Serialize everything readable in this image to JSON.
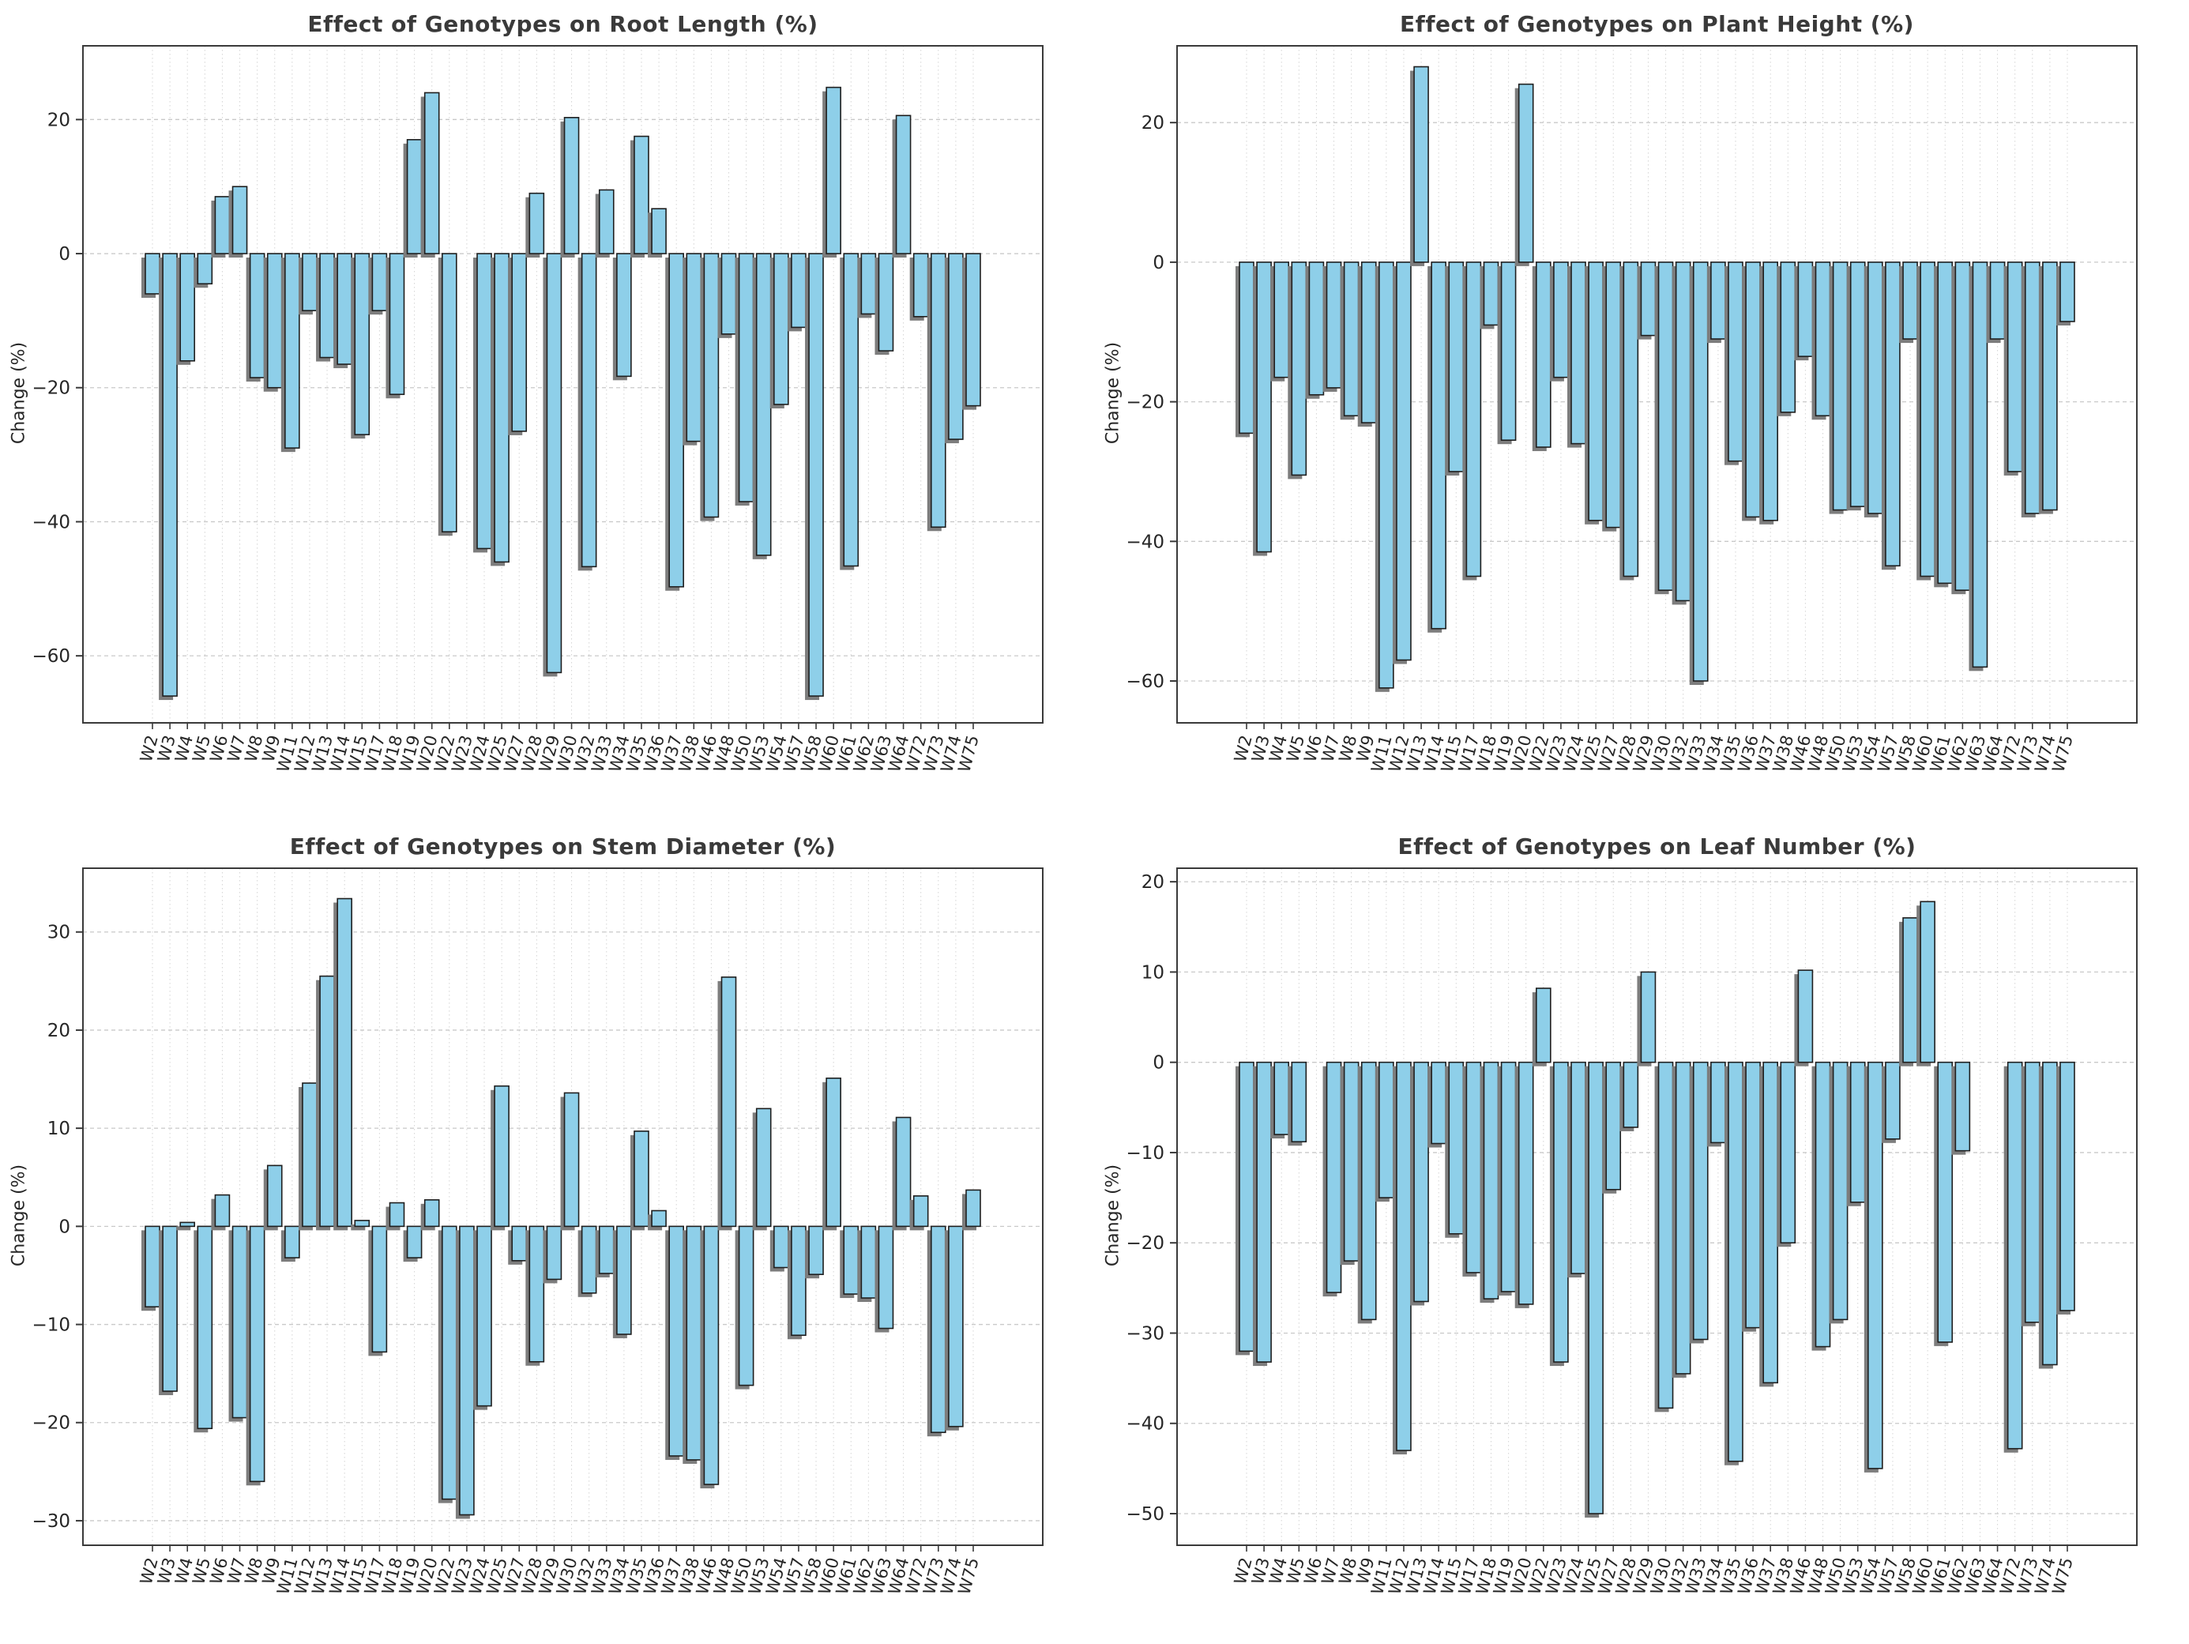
{
  "page": {
    "background": "#ffffff"
  },
  "styles": {
    "bar_fill": "#8ecfe9",
    "bar_edge": "#1f1f1f",
    "bar_shadow": "#7d7d7d",
    "grid_h_color": "#c9c9c9",
    "grid_v_color": "#d4d4d4",
    "spine_color": "#3a3a3a",
    "tick_text_color": "#262626",
    "title_color": "#3a3a3a"
  },
  "categories": [
    "W2",
    "W3",
    "W4",
    "W5",
    "W6",
    "W7",
    "W8",
    "W9",
    "W11",
    "W12",
    "W13",
    "W14",
    "W15",
    "W17",
    "W18",
    "W19",
    "W20",
    "W22",
    "W23",
    "W24",
    "W25",
    "W27",
    "W28",
    "W29",
    "W30",
    "W32",
    "W33",
    "W34",
    "W35",
    "W36",
    "W37",
    "W38",
    "W46",
    "W48",
    "W50",
    "W53",
    "W54",
    "W57",
    "W58",
    "W60",
    "W61",
    "W62",
    "W63",
    "W64",
    "W72",
    "W73",
    "W74",
    "W75"
  ],
  "chart_data": [
    {
      "type": "bar",
      "title": "Effect of Genotypes on Root Length (%)",
      "xlabel": "",
      "ylabel": "Change (%)",
      "legend": "none",
      "grid": true,
      "yticks": [
        20,
        0,
        -20,
        -40,
        -60
      ],
      "ylim": [
        -70,
        31
      ],
      "categories_ref": "categories",
      "values": [
        -6,
        -66,
        -16,
        -4.5,
        8.5,
        10,
        -18.5,
        -20,
        -29,
        -8.5,
        -15.5,
        -16.5,
        -27,
        -8.5,
        -21,
        17,
        24,
        -41.5,
        0,
        -44,
        -46,
        -26.5,
        9,
        -62.5,
        20.3,
        -46.7,
        9.5,
        -18.3,
        17.5,
        6.7,
        -49.7,
        -28,
        -39.3,
        -12,
        -37,
        -45,
        -22.5,
        -11,
        -66,
        24.8,
        -46.6,
        -9,
        -14.5,
        20.6,
        -9.4,
        -40.8,
        -27.7,
        -22.7
      ]
    },
    {
      "type": "bar",
      "title": "Effect of Genotypes on Plant Height (%)",
      "xlabel": "",
      "ylabel": "Change (%)",
      "legend": "none",
      "grid": true,
      "yticks": [
        20,
        0,
        -20,
        -40,
        -60
      ],
      "ylim": [
        -66,
        31
      ],
      "categories_ref": "categories",
      "values": [
        -24.5,
        -41.5,
        -16.5,
        -30.5,
        -19,
        -18,
        -22,
        -23,
        -61,
        -57,
        28,
        -52.5,
        -30,
        -45,
        -9,
        -25.5,
        25.5,
        -26.5,
        -16.5,
        -26,
        -37,
        -38,
        -45,
        -10.5,
        -47,
        -48.5,
        -60,
        -11,
        -28.5,
        -36.5,
        -37,
        -21.5,
        -13.5,
        -22,
        -35.5,
        -35,
        -36,
        -43.5,
        -11,
        -45,
        -46,
        -47,
        -58,
        -11,
        -30,
        -36,
        -35.5,
        -8.5
      ]
    },
    {
      "type": "bar",
      "title": "Effect of Genotypes on Stem Diameter (%)",
      "xlabel": "",
      "ylabel": "Change (%)",
      "legend": "none",
      "grid": true,
      "yticks": [
        30,
        20,
        10,
        0,
        -10,
        -20,
        -30
      ],
      "ylim": [
        -32.5,
        36.5
      ],
      "categories_ref": "categories",
      "values": [
        -8.2,
        -16.8,
        0.4,
        -20.6,
        3.2,
        -19.5,
        -26,
        6.2,
        -3.2,
        14.6,
        25.5,
        33.4,
        0.6,
        -12.8,
        2.4,
        -3.2,
        2.7,
        -27.8,
        -29.4,
        -18.3,
        14.3,
        -3.5,
        -13.8,
        -5.4,
        13.6,
        -6.8,
        -4.8,
        -11,
        9.7,
        1.6,
        -23.4,
        -23.8,
        -26.3,
        25.4,
        -16.2,
        12,
        -4.2,
        -11.1,
        -4.9,
        15.1,
        -6.9,
        -7.3,
        -10.4,
        11.1,
        3.1,
        -21,
        -20.4,
        3.7
      ]
    },
    {
      "type": "bar",
      "title": "Effect of Genotypes on Leaf Number (%)",
      "xlabel": "",
      "ylabel": "Change (%)",
      "legend": "none",
      "grid": true,
      "yticks": [
        20,
        10,
        0,
        -10,
        -20,
        -30,
        -40,
        -50
      ],
      "ylim": [
        -53.5,
        21.5
      ],
      "categories_ref": "categories",
      "values": [
        -32,
        -33.2,
        -8,
        -8.8,
        0,
        -25.5,
        -22,
        -28.5,
        -15,
        -43,
        -26.5,
        -9,
        -19,
        -23.3,
        -26.2,
        -25.4,
        -26.8,
        8.2,
        -33.2,
        -23.4,
        -50,
        -14.1,
        -7.2,
        10,
        -38.3,
        -34.5,
        -30.7,
        -8.9,
        -44.2,
        -29.4,
        -35.5,
        -20,
        10.2,
        -31.5,
        -28.5,
        -15.5,
        -45,
        -8.5,
        16,
        17.8,
        -31,
        -9.8,
        0,
        0,
        -42.8,
        -28.8,
        -33.5,
        -27.5
      ]
    }
  ]
}
